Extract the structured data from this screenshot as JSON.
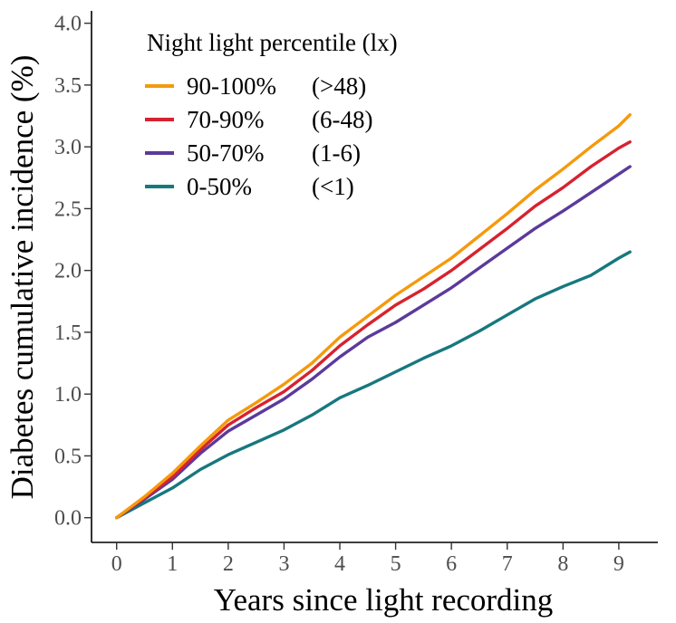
{
  "chart_data": {
    "type": "line",
    "title": "",
    "xlabel": "Years since light recording",
    "ylabel": "Diabetes cumulative incidence (%)",
    "xlim": [
      -0.45,
      9.7
    ],
    "ylim": [
      -0.2,
      4.1
    ],
    "x_ticks": [
      "0",
      "1",
      "2",
      "3",
      "4",
      "5",
      "6",
      "7",
      "8",
      "9"
    ],
    "y_ticks": [
      "0.0",
      "0.5",
      "1.0",
      "1.5",
      "2.0",
      "2.5",
      "3.0",
      "3.5",
      "4.0"
    ],
    "grid": false,
    "legend": {
      "title": "Night light percentile (lx)",
      "position": "top-left"
    },
    "series": [
      {
        "name": "90-100%",
        "range": "(>48)",
        "color": "#F59A0B",
        "x": [
          0,
          0.5,
          1,
          1.5,
          2,
          2.5,
          3,
          3.5,
          4,
          4.5,
          5,
          5.5,
          6,
          6.5,
          7,
          7.5,
          8,
          8.5,
          9,
          9.2
        ],
        "y": [
          0,
          0.17,
          0.36,
          0.58,
          0.79,
          0.93,
          1.08,
          1.25,
          1.46,
          1.63,
          1.8,
          1.95,
          2.1,
          2.28,
          2.46,
          2.65,
          2.82,
          3.0,
          3.17,
          3.26
        ]
      },
      {
        "name": "70-90%",
        "range": "(6-48)",
        "color": "#D7222F",
        "x": [
          0,
          0.5,
          1,
          1.5,
          2,
          2.5,
          3,
          3.5,
          4,
          4.5,
          5,
          5.5,
          6,
          6.5,
          7,
          7.5,
          8,
          8.5,
          9,
          9.2
        ],
        "y": [
          0,
          0.16,
          0.33,
          0.55,
          0.75,
          0.89,
          1.02,
          1.19,
          1.39,
          1.56,
          1.72,
          1.85,
          2.0,
          2.17,
          2.34,
          2.52,
          2.67,
          2.84,
          2.99,
          3.04
        ]
      },
      {
        "name": "50-70%",
        "range": "(1-6)",
        "color": "#5B3A9B",
        "x": [
          0,
          0.5,
          1,
          1.5,
          2,
          2.5,
          3,
          3.5,
          4,
          4.5,
          5,
          5.5,
          6,
          6.5,
          7,
          7.5,
          8,
          8.5,
          9,
          9.2
        ],
        "y": [
          0,
          0.15,
          0.31,
          0.52,
          0.7,
          0.83,
          0.96,
          1.12,
          1.3,
          1.46,
          1.58,
          1.72,
          1.86,
          2.02,
          2.18,
          2.34,
          2.48,
          2.63,
          2.78,
          2.84
        ]
      },
      {
        "name": "0-50%",
        "range": "(<1)",
        "color": "#17787E",
        "x": [
          0,
          0.5,
          1,
          1.5,
          2,
          2.5,
          3,
          3.5,
          4,
          4.5,
          5,
          5.5,
          6,
          6.5,
          7,
          7.5,
          8,
          8.5,
          9,
          9.2
        ],
        "y": [
          0,
          0.12,
          0.24,
          0.39,
          0.51,
          0.61,
          0.71,
          0.83,
          0.97,
          1.07,
          1.18,
          1.29,
          1.39,
          1.51,
          1.64,
          1.77,
          1.87,
          1.96,
          2.1,
          2.15
        ]
      }
    ]
  }
}
